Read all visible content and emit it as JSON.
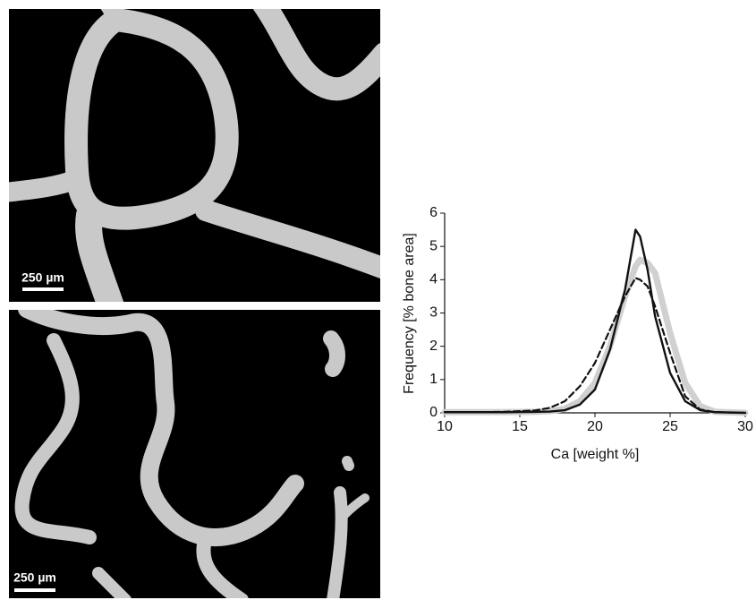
{
  "images": [
    {
      "scale_label": "250 µm"
    },
    {
      "scale_label": "250 µm"
    }
  ],
  "chart_data": {
    "type": "line",
    "xlabel": "Ca [weight %]",
    "ylabel": "Frequency [% bone area]",
    "x": [
      10,
      12,
      14,
      16,
      17,
      18,
      19,
      20,
      21,
      22,
      22.7,
      23,
      23.5,
      24,
      25,
      26,
      27,
      28,
      30
    ],
    "series": [
      {
        "color": "#d0d0d0",
        "line_style": "band",
        "values": [
          0.02,
          0.02,
          0.02,
          0.03,
          0.05,
          0.12,
          0.35,
          0.9,
          2.0,
          3.5,
          4.4,
          4.6,
          4.5,
          4.2,
          2.4,
          0.9,
          0.2,
          0.03,
          0
        ]
      },
      {
        "color": "#111111",
        "line_style": "dashed",
        "values": [
          0.02,
          0.02,
          0.03,
          0.07,
          0.15,
          0.35,
          0.8,
          1.5,
          2.5,
          3.5,
          4.05,
          4.0,
          3.8,
          3.2,
          1.8,
          0.5,
          0.1,
          0.02,
          0
        ]
      },
      {
        "color": "#111111",
        "line_style": "solid",
        "values": [
          0.02,
          0.02,
          0.02,
          0.03,
          0.04,
          0.08,
          0.25,
          0.7,
          1.9,
          3.7,
          5.5,
          5.3,
          4.3,
          2.9,
          1.2,
          0.35,
          0.08,
          0.02,
          0
        ]
      }
    ],
    "xlim": [
      10,
      30
    ],
    "xticks": [
      10,
      15,
      20,
      25,
      30
    ],
    "ylim": [
      0,
      6
    ],
    "yticks": [
      0,
      1,
      2,
      3,
      4,
      5,
      6
    ],
    "grid": false
  }
}
